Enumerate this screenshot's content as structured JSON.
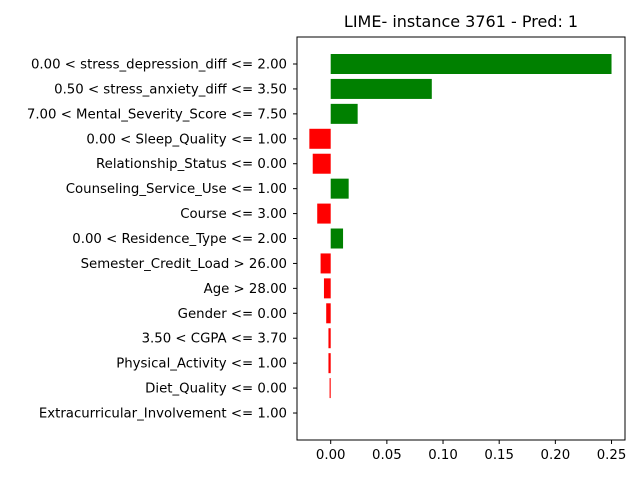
{
  "chart_data": {
    "type": "bar",
    "orientation": "horizontal",
    "title": "LIME- instance 3761 - Pred: 1",
    "xlabel": "",
    "ylabel": "",
    "xlim": [
      -0.03,
      0.262
    ],
    "xticks": [
      0.0,
      0.05,
      0.1,
      0.15,
      0.2,
      0.25
    ],
    "xtick_labels": [
      "0.00",
      "0.05",
      "0.10",
      "0.15",
      "0.20",
      "0.25"
    ],
    "grid": false,
    "categories": [
      "0.00 < stress_depression_diff <= 2.00",
      "0.50 < stress_anxiety_diff <= 3.50",
      "7.00 < Mental_Severity_Score <= 7.50",
      "0.00 < Sleep_Quality <= 1.00",
      "Relationship_Status <= 0.00",
      "Counseling_Service_Use <= 1.00",
      "Course <= 3.00",
      "0.00 < Residence_Type <= 2.00",
      "Semester_Credit_Load > 26.00",
      "Age > 28.00",
      "Gender <= 0.00",
      "3.50 < CGPA <= 3.70",
      "Physical_Activity <= 1.00",
      "Diet_Quality <= 0.00",
      "Extracurricular_Involvement <= 1.00"
    ],
    "values": [
      0.25,
      0.09,
      0.024,
      -0.019,
      -0.016,
      0.016,
      -0.012,
      0.011,
      -0.009,
      -0.006,
      -0.004,
      -0.002,
      -0.002,
      -0.001,
      0.0
    ],
    "colors": {
      "positive": "#008000",
      "negative": "#ff0000"
    }
  }
}
